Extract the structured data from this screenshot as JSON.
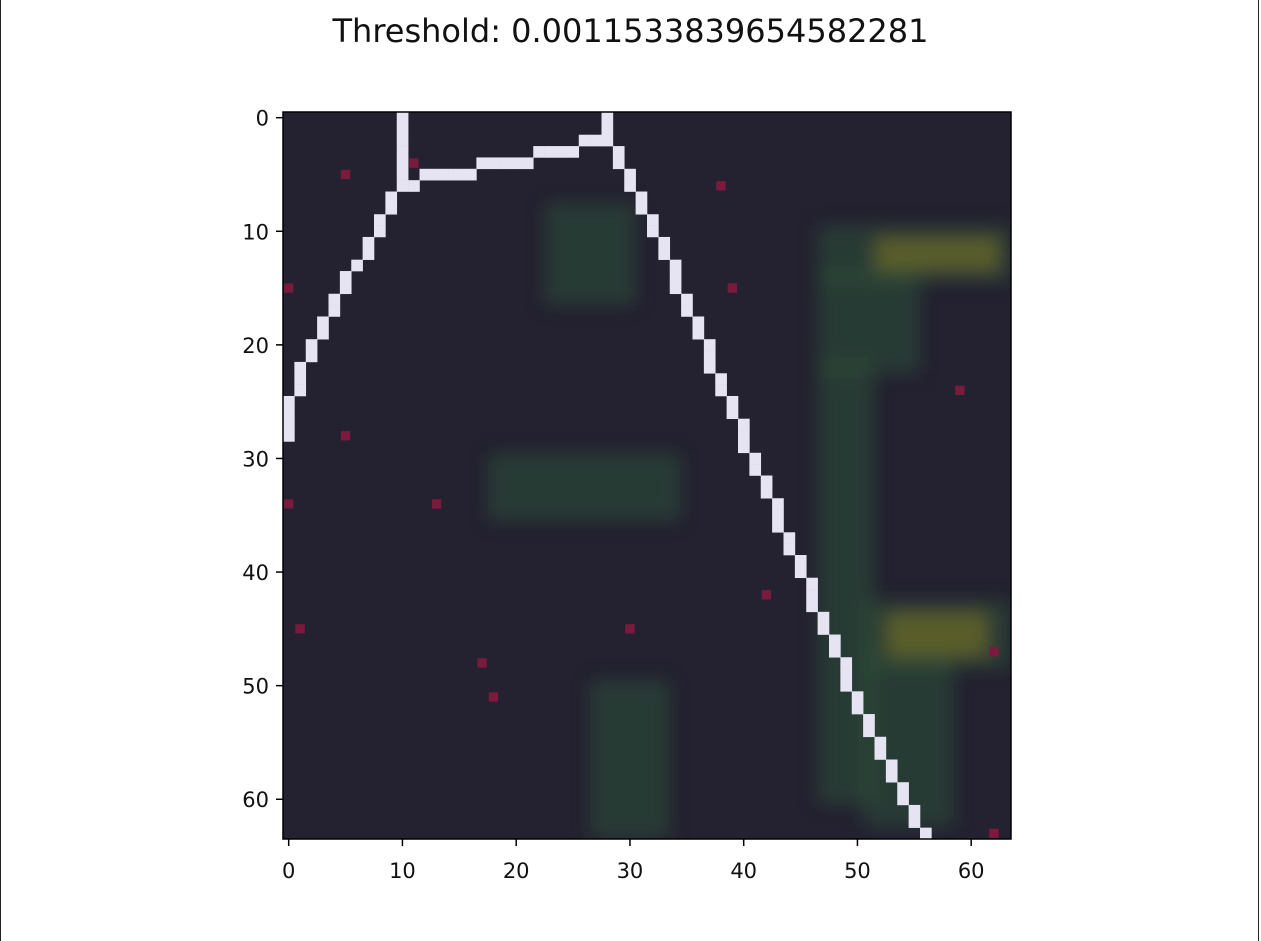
{
  "chart_data": {
    "type": "heatmap",
    "title": "Threshold: 0.0011533839654582281",
    "xlabel": "",
    "ylabel": "",
    "xlim": [
      -0.5,
      63.5
    ],
    "ylim": [
      63.5,
      -0.5
    ],
    "xticks": [
      0,
      10,
      20,
      30,
      40,
      50,
      60
    ],
    "yticks": [
      0,
      10,
      20,
      30,
      40,
      50,
      60
    ],
    "grid": false,
    "colors": {
      "background": "#242130",
      "path": "#e6e4f2",
      "points": "#7a1a3c",
      "green_glow": "#2f5a3a",
      "yellow_glow": "#6b6a2a"
    },
    "path_cells": [
      [
        10,
        0
      ],
      [
        10,
        1
      ],
      [
        10,
        2
      ],
      [
        10,
        3
      ],
      [
        10,
        4
      ],
      [
        10,
        5
      ],
      [
        10,
        6
      ],
      [
        11,
        6
      ],
      [
        12,
        5
      ],
      [
        13,
        5
      ],
      [
        14,
        5
      ],
      [
        15,
        5
      ],
      [
        16,
        5
      ],
      [
        17,
        4
      ],
      [
        18,
        4
      ],
      [
        19,
        4
      ],
      [
        20,
        4
      ],
      [
        21,
        4
      ],
      [
        22,
        3
      ],
      [
        23,
        3
      ],
      [
        24,
        3
      ],
      [
        25,
        3
      ],
      [
        26,
        2
      ],
      [
        27,
        2
      ],
      [
        28,
        2
      ],
      [
        28,
        1
      ],
      [
        28,
        0
      ],
      [
        9,
        7
      ],
      [
        9,
        8
      ],
      [
        8,
        9
      ],
      [
        8,
        10
      ],
      [
        7,
        11
      ],
      [
        7,
        12
      ],
      [
        6,
        13
      ],
      [
        5,
        14
      ],
      [
        5,
        15
      ],
      [
        4,
        16
      ],
      [
        4,
        17
      ],
      [
        3,
        18
      ],
      [
        3,
        19
      ],
      [
        2,
        20
      ],
      [
        2,
        21
      ],
      [
        1,
        22
      ],
      [
        1,
        23
      ],
      [
        1,
        24
      ],
      [
        0,
        25
      ],
      [
        0,
        26
      ],
      [
        0,
        27
      ],
      [
        0,
        28
      ],
      [
        29,
        3
      ],
      [
        29,
        4
      ],
      [
        30,
        5
      ],
      [
        30,
        6
      ],
      [
        31,
        7
      ],
      [
        31,
        8
      ],
      [
        32,
        9
      ],
      [
        32,
        10
      ],
      [
        33,
        11
      ],
      [
        33,
        12
      ],
      [
        34,
        13
      ],
      [
        34,
        14
      ],
      [
        34,
        15
      ],
      [
        35,
        16
      ],
      [
        35,
        17
      ],
      [
        36,
        18
      ],
      [
        36,
        19
      ],
      [
        37,
        20
      ],
      [
        37,
        21
      ],
      [
        37,
        22
      ],
      [
        38,
        23
      ],
      [
        38,
        24
      ],
      [
        39,
        25
      ],
      [
        39,
        26
      ],
      [
        40,
        27
      ],
      [
        40,
        28
      ],
      [
        40,
        29
      ],
      [
        41,
        30
      ],
      [
        41,
        31
      ],
      [
        42,
        32
      ],
      [
        42,
        33
      ],
      [
        43,
        34
      ],
      [
        43,
        35
      ],
      [
        43,
        36
      ],
      [
        44,
        37
      ],
      [
        44,
        38
      ],
      [
        45,
        39
      ],
      [
        45,
        40
      ],
      [
        46,
        41
      ],
      [
        46,
        42
      ],
      [
        46,
        43
      ],
      [
        47,
        44
      ],
      [
        47,
        45
      ],
      [
        48,
        46
      ],
      [
        48,
        47
      ],
      [
        49,
        48
      ],
      [
        49,
        49
      ],
      [
        49,
        50
      ],
      [
        50,
        51
      ],
      [
        50,
        52
      ],
      [
        51,
        53
      ],
      [
        51,
        54
      ],
      [
        52,
        55
      ],
      [
        52,
        56
      ],
      [
        53,
        57
      ],
      [
        53,
        58
      ],
      [
        54,
        59
      ],
      [
        54,
        60
      ],
      [
        55,
        61
      ],
      [
        55,
        62
      ],
      [
        56,
        63
      ]
    ],
    "points": [
      [
        11,
        4
      ],
      [
        5,
        5
      ],
      [
        38,
        6
      ],
      [
        0,
        15
      ],
      [
        39,
        15
      ],
      [
        59,
        24
      ],
      [
        5,
        28
      ],
      [
        0,
        34
      ],
      [
        13,
        34
      ],
      [
        42,
        42
      ],
      [
        1,
        45
      ],
      [
        30,
        45
      ],
      [
        62,
        47
      ],
      [
        17,
        48
      ],
      [
        18,
        51
      ],
      [
        62,
        63
      ]
    ],
    "glows": [
      {
        "x0": 47,
        "x1": 63,
        "y0": 10,
        "y1": 14,
        "color": "green"
      },
      {
        "x0": 52,
        "x1": 62,
        "y0": 11,
        "y1": 13,
        "color": "yellow"
      },
      {
        "x0": 47,
        "x1": 55,
        "y0": 14,
        "y1": 22,
        "color": "green"
      },
      {
        "x0": 23,
        "x1": 30,
        "y0": 8,
        "y1": 16,
        "color": "green"
      },
      {
        "x0": 18,
        "x1": 34,
        "y0": 30,
        "y1": 35,
        "color": "green"
      },
      {
        "x0": 47,
        "x1": 51,
        "y0": 22,
        "y1": 60,
        "color": "green"
      },
      {
        "x0": 51,
        "x1": 63,
        "y0": 43,
        "y1": 48,
        "color": "green"
      },
      {
        "x0": 53,
        "x1": 61,
        "y0": 44,
        "y1": 47,
        "color": "yellow"
      },
      {
        "x0": 27,
        "x1": 33,
        "y0": 50,
        "y1": 63,
        "color": "green"
      },
      {
        "x0": 51,
        "x1": 58,
        "y0": 48,
        "y1": 62,
        "color": "green"
      }
    ]
  }
}
